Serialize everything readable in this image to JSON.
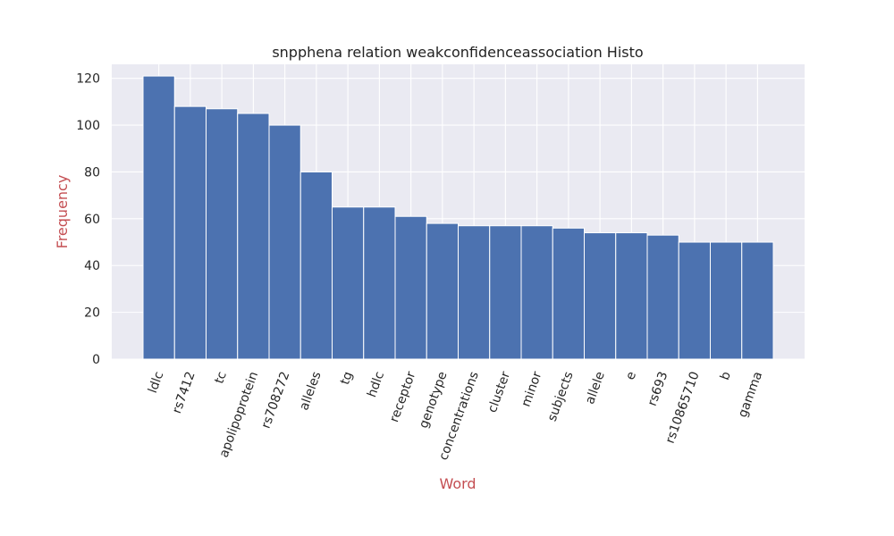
{
  "chart_data": {
    "type": "bar",
    "title": "snpphena relation weakconfidenceassociation Histo",
    "xlabel": "Word",
    "ylabel": "Frequency",
    "categories": [
      "ldlc",
      "rs7412",
      "tc",
      "apolipoprotein",
      "rs708272",
      "alleles",
      "tg",
      "hdlc",
      "receptor",
      "genotype",
      "concentrations",
      "cluster",
      "minor",
      "subjects",
      "allele",
      "e",
      "rs693",
      "rs10865710",
      "b",
      "gamma"
    ],
    "values": [
      121,
      108,
      107,
      105,
      100,
      80,
      65,
      65,
      61,
      58,
      57,
      57,
      57,
      56,
      54,
      54,
      53,
      50,
      50,
      50
    ],
    "ylim": [
      0,
      126
    ],
    "yticks": [
      0,
      20,
      40,
      60,
      80,
      100,
      120
    ],
    "grid": true,
    "bar_color": "#4c72b0",
    "background_color": "#eaeaf2",
    "grid_color": "#ffffff",
    "axis_label_color": "#c44e52"
  }
}
